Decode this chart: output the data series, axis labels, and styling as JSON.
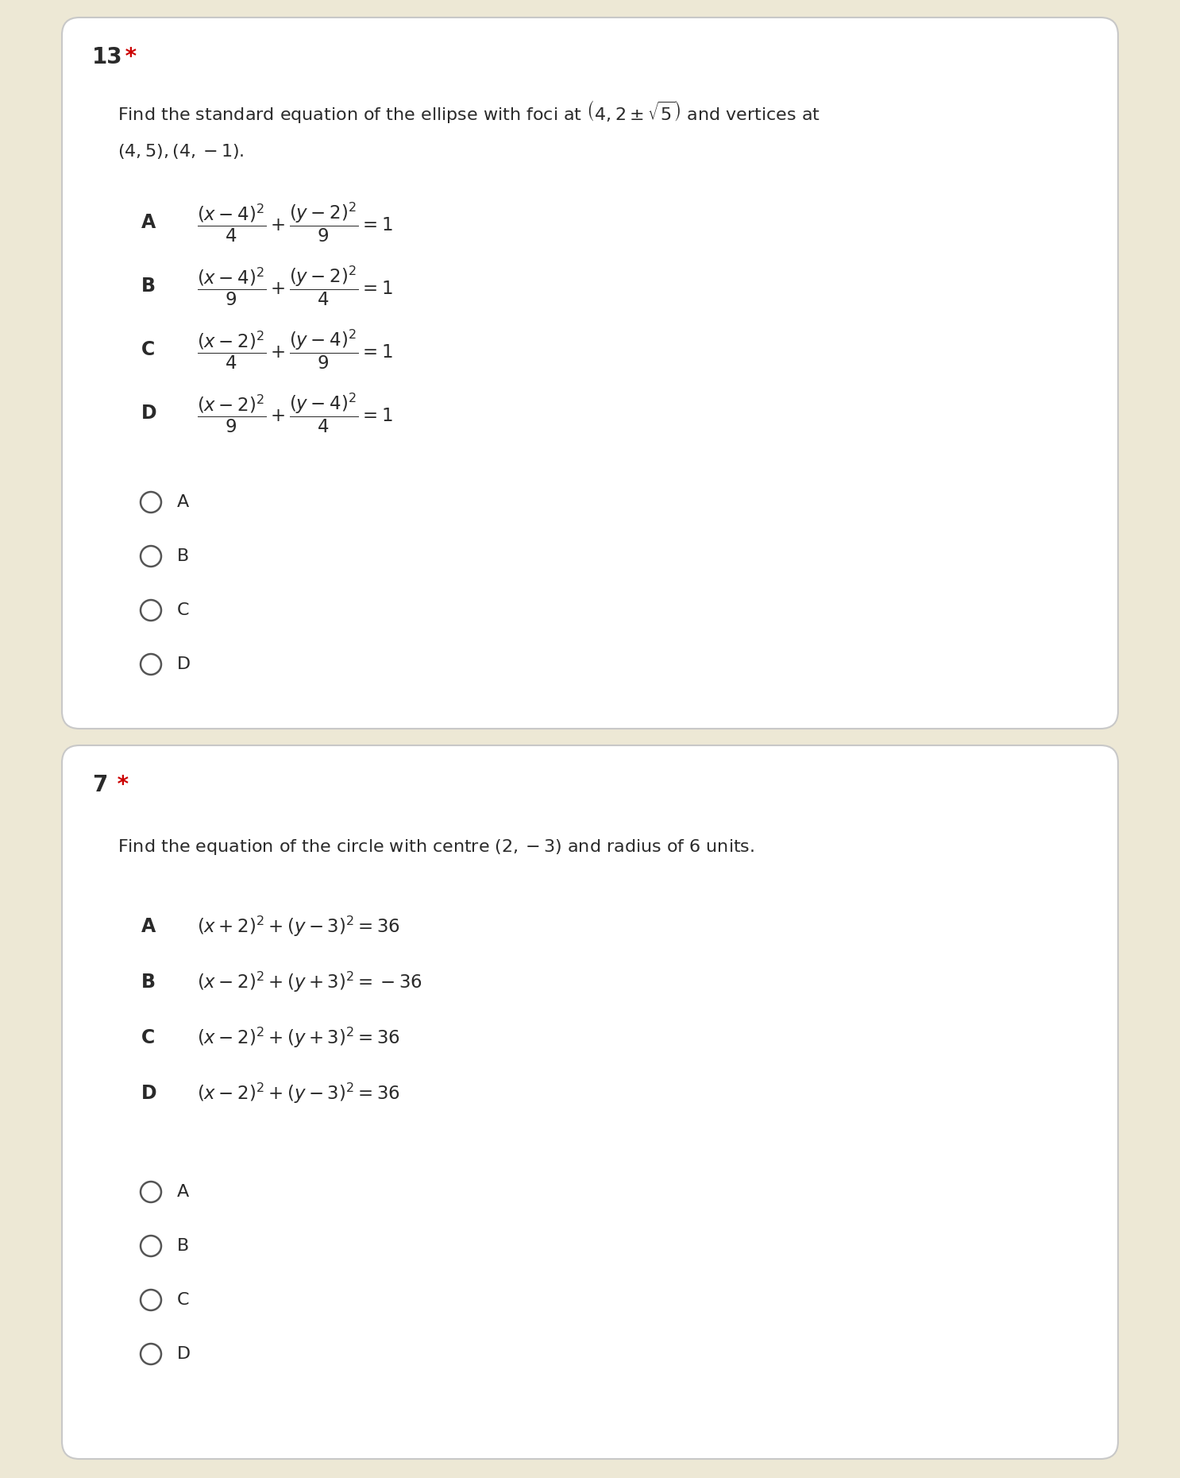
{
  "bg_color": "#ede8d5",
  "card_color": "#ffffff",
  "card_border_color": "#cccccc",
  "text_color": "#2a2a2a",
  "red_color": "#cc0000",
  "figsize": [
    14.86,
    18.6
  ],
  "dpi": 100,
  "q1_number": "13",
  "q1_star": " *",
  "q1_question_line1": "Find the standard equation of the ellipse with foci at $\\left(4,2\\pm\\sqrt{5}\\right)$ and vertices at",
  "q1_question_line2": "$(4,5),(4,-1)$.",
  "q1_options": [
    {
      "label": "A",
      "math": "$\\dfrac{(x-4)^{2}}{4}+\\dfrac{(y-2)^{2}}{9}=1$"
    },
    {
      "label": "B",
      "math": "$\\dfrac{(x-4)^{2}}{9}+\\dfrac{(y-2)^{2}}{4}=1$"
    },
    {
      "label": "C",
      "math": "$\\dfrac{(x-2)^{2}}{4}+\\dfrac{(y-4)^{2}}{9}=1$"
    },
    {
      "label": "D",
      "math": "$\\dfrac{(x-2)^{2}}{9}+\\dfrac{(y-4)^{2}}{4}=1$"
    }
  ],
  "q1_radio_labels": [
    "A",
    "B",
    "C",
    "D"
  ],
  "q2_number": "7",
  "q2_star": " *",
  "q2_question": "Find the equation of the circle with centre $\\left(2,-3\\right)$ and radius of 6 units.",
  "q2_options": [
    {
      "label": "A",
      "math": "$(x+2)^{2}+(y-3)^{2}=36$"
    },
    {
      "label": "B",
      "math": "$(x-2)^{2}+(y+3)^{2}=-36$"
    },
    {
      "label": "C",
      "math": "$(x-2)^{2}+(y+3)^{2}=36$"
    },
    {
      "label": "D",
      "math": "$(x-2)^{2}+(y-3)^{2}=36$"
    }
  ],
  "q2_radio_labels": [
    "A",
    "B",
    "C",
    "D"
  ]
}
